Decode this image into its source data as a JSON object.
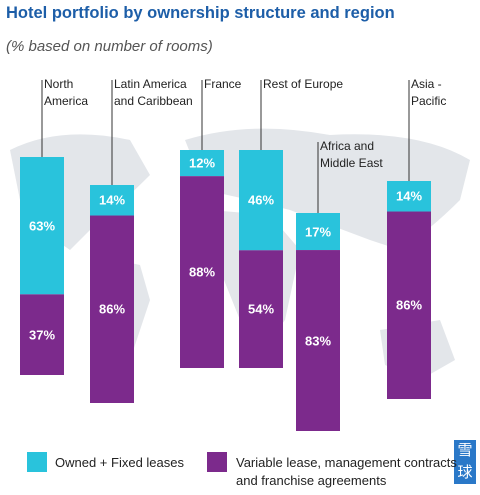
{
  "chart_data": {
    "type": "stacked-bar",
    "title": "Hotel portfolio by ownership structure and region",
    "subtitle": "(% based on number of rooms)",
    "categories": [
      "North\nAmerica",
      "Latin America\nand Caribbean",
      "France",
      "Rest of Europe",
      "Africa and\nMiddle East",
      "Asia -\nPacific"
    ],
    "series": [
      {
        "name": "Owned + Fixed leases",
        "color": "#29c3dc",
        "values": [
          63,
          14,
          12,
          46,
          17,
          14
        ],
        "value_labels": [
          "63%",
          "14%",
          "12%",
          "46%",
          "17%",
          "14%"
        ]
      },
      {
        "name": "Variable lease, management contracts\nand franchise agreements",
        "color": "#7c2a8c",
        "values": [
          37,
          86,
          88,
          54,
          83,
          86
        ],
        "value_labels": [
          "37%",
          "86%",
          "88%",
          "54%",
          "83%",
          "86%"
        ]
      }
    ],
    "ylim": [
      0,
      100
    ],
    "legend": "bottom",
    "watermark": "雪球"
  }
}
